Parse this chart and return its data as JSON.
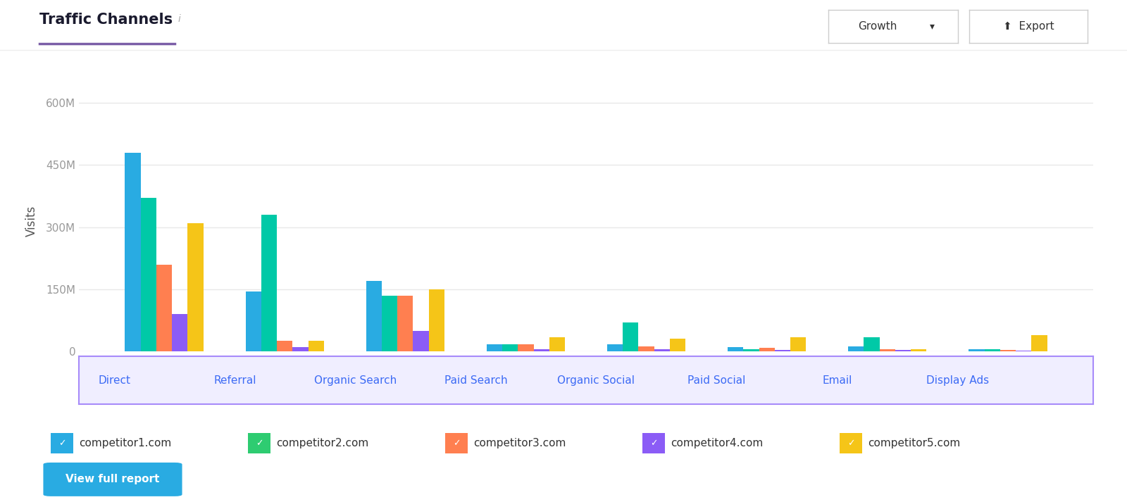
{
  "title": "Traffic Channels",
  "ylabel": "Visits",
  "categories": [
    "Direct",
    "Referral",
    "Organic Search",
    "Paid Search",
    "Organic Social",
    "Paid Social",
    "Email",
    "Display Ads"
  ],
  "competitors": [
    "competitor1.com",
    "competitor2.com",
    "competitor3.com",
    "competitor4.com",
    "competitor5.com"
  ],
  "colors": [
    "#29ABE2",
    "#00C9A7",
    "#FF7F50",
    "#8B5CF6",
    "#F5C518"
  ],
  "legend_colors": [
    "#29ABE2",
    "#2ECC71",
    "#FF7F50",
    "#8B5CF6",
    "#F5C518"
  ],
  "data": {
    "competitor1.com": [
      480,
      145,
      170,
      17,
      18,
      10,
      12,
      5
    ],
    "competitor2.com": [
      370,
      330,
      135,
      17,
      70,
      5,
      35,
      5
    ],
    "competitor3.com": [
      210,
      25,
      135,
      18,
      12,
      8,
      5,
      3
    ],
    "competitor4.com": [
      90,
      10,
      50,
      5,
      5,
      3,
      3,
      2
    ],
    "competitor5.com": [
      310,
      25,
      150,
      35,
      30,
      35,
      5,
      40
    ]
  },
  "ylim": [
    0,
    630
  ],
  "yticks": [
    0,
    150,
    300,
    450,
    600
  ],
  "ytick_labels": [
    "0",
    "150M",
    "300M",
    "450M",
    "600M"
  ],
  "background_color": "#FFFFFF",
  "grid_color": "#E8E8E8",
  "axis_label_color": "#555555",
  "category_label_color": "#3D6BF5",
  "title_color": "#1A1A2E",
  "underline_color": "#7B5EA7",
  "button_color": "#29ABE2",
  "button_text": "View full report",
  "growth_button_text": "Growth",
  "export_button_text": "Export",
  "category_box_color": "#F0EEFF",
  "category_box_border": "#A78BFA"
}
